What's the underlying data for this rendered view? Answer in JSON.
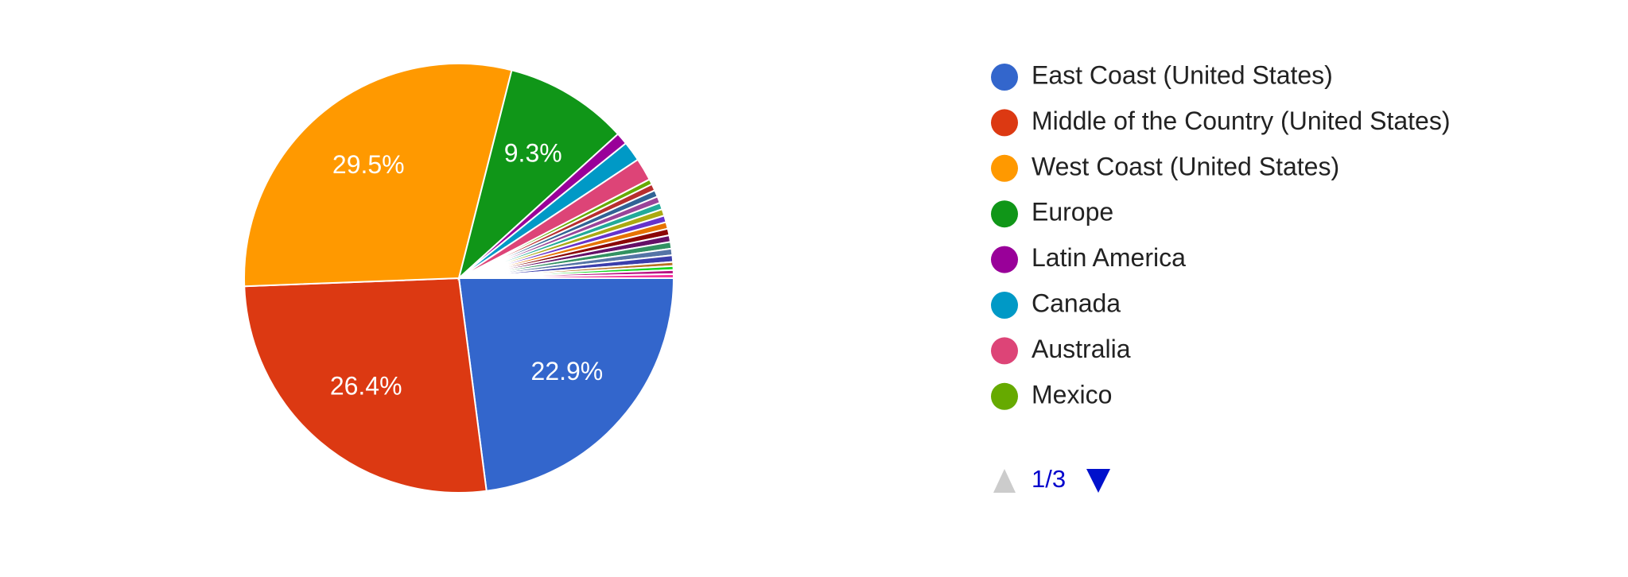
{
  "chart_data": {
    "type": "pie",
    "categories": [
      "East Coast (United States)",
      "Middle of the Country (United States)",
      "West Coast (United States)",
      "Europe",
      "Latin America",
      "Canada",
      "Australia",
      "Mexico",
      null,
      null,
      null,
      null,
      null,
      null,
      null,
      null,
      null,
      null,
      null,
      null,
      null,
      null,
      null,
      null
    ],
    "values": [
      22.9,
      26.4,
      29.5,
      9.3,
      0.9,
      1.5,
      1.7,
      0.4,
      0.5,
      0.5,
      0.5,
      0.5,
      0.5,
      0.5,
      0.5,
      0.5,
      0.5,
      0.5,
      0.5,
      0.5,
      0.3,
      0.3,
      0.3,
      0.3
    ],
    "value_labels": [
      "22.9%",
      "26.4%",
      "29.5%",
      "9.3%",
      null,
      null,
      null,
      null,
      null,
      null,
      null,
      null,
      null,
      null,
      null,
      null,
      null,
      null,
      null,
      null,
      null,
      null,
      null,
      null
    ],
    "colors": [
      "#3366cc",
      "#dc3912",
      "#ff9900",
      "#109618",
      "#990099",
      "#0099c6",
      "#dd4477",
      "#66aa00",
      "#b82e2e",
      "#316395",
      "#994499",
      "#22aa99",
      "#aaaa11",
      "#6633cc",
      "#e67300",
      "#8b0707",
      "#651067",
      "#329262",
      "#5574a6",
      "#3b3eac",
      "#b77322",
      "#16d620",
      "#b91383",
      "#f4359e"
    ],
    "legend": "right",
    "pager": "1/3"
  }
}
